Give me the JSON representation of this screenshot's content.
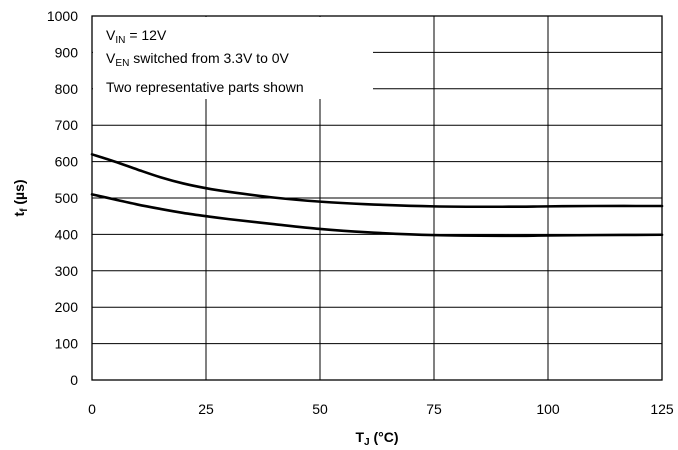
{
  "chart_data": {
    "type": "line",
    "xlabel": {
      "main": "T",
      "sub": "J",
      "rest": " (°C)"
    },
    "ylabel": {
      "main": "t",
      "sub": "f",
      "rest": " (µs)"
    },
    "xlim": [
      0,
      125
    ],
    "ylim": [
      0,
      1000
    ],
    "x_ticks": [
      0,
      25,
      50,
      75,
      100,
      125
    ],
    "y_ticks": [
      0,
      100,
      200,
      300,
      400,
      500,
      600,
      700,
      800,
      900,
      1000
    ],
    "grid": true,
    "annotations": [
      {
        "main": "V",
        "sub": "IN",
        "rest": " = 12V"
      },
      {
        "main": "V",
        "sub": "EN",
        "rest": " switched from 3.3V to 0V"
      },
      {
        "main": "Two representative parts shown",
        "sub": "",
        "rest": ""
      }
    ],
    "series": [
      {
        "x": [
          0,
          5,
          10,
          15,
          20,
          25,
          30,
          40,
          50,
          60,
          75,
          90,
          100,
          110,
          125
        ],
        "values": [
          620,
          600,
          578,
          557,
          540,
          527,
          517,
          501,
          490,
          483,
          477,
          476,
          477,
          478,
          478
        ]
      },
      {
        "x": [
          0,
          5,
          10,
          15,
          20,
          25,
          30,
          40,
          50,
          60,
          75,
          90,
          100,
          110,
          125
        ],
        "values": [
          510,
          496,
          482,
          470,
          459,
          450,
          442,
          428,
          415,
          406,
          398,
          396,
          397,
          398,
          399
        ]
      }
    ]
  }
}
